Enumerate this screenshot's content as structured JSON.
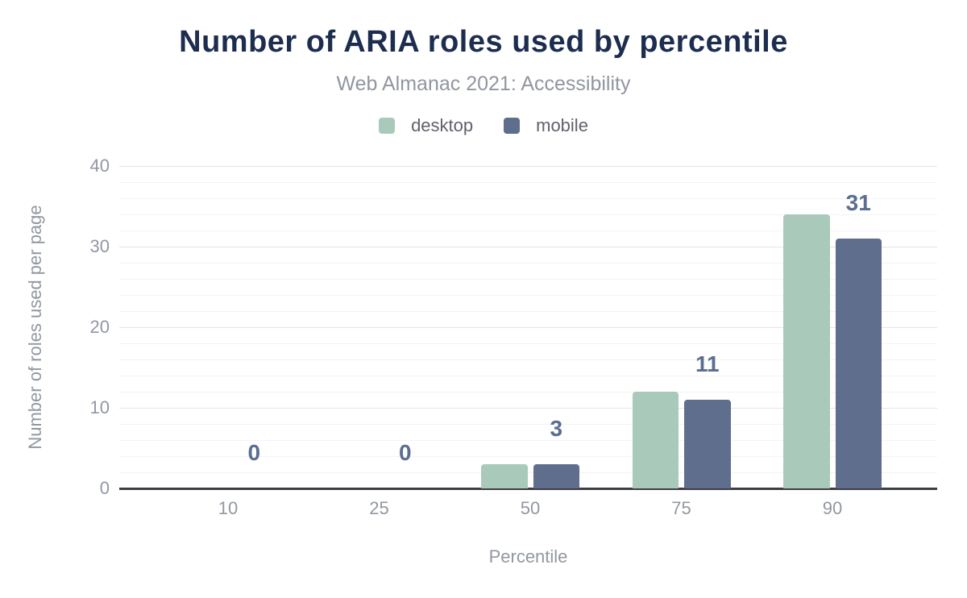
{
  "chart_data": {
    "type": "bar",
    "title": "Number of ARIA roles used by percentile",
    "subtitle": "Web Almanac 2021: Accessibility",
    "xlabel": "Percentile",
    "ylabel": "Number of roles used per page",
    "categories": [
      "10",
      "25",
      "50",
      "75",
      "90"
    ],
    "series": [
      {
        "name": "desktop",
        "color": "#a9cabb",
        "values": [
          0,
          0,
          3,
          12,
          34
        ]
      },
      {
        "name": "mobile",
        "color": "#5f6e8c",
        "values": [
          0,
          0,
          3,
          11,
          31
        ]
      }
    ],
    "data_labels": [
      "0",
      "0",
      "3",
      "11",
      "31"
    ],
    "data_labels_anchor_series": "mobile",
    "ylim": [
      0,
      40
    ],
    "yticks": [
      0,
      10,
      20,
      30,
      40
    ],
    "y_minor_step": 2,
    "grid": "horizontal",
    "legend_position": "top"
  },
  "colors": {
    "title": "#1d2d4f",
    "subtitle": "#9196a0",
    "axis_text": "#9297a1",
    "legend_text": "#5f626c",
    "data_label": "#5a6e91",
    "grid_major": "#e2e3e7",
    "grid_minor": "#f2f3f5",
    "axis_line": "#3d3d44",
    "background": "#ffffff"
  }
}
